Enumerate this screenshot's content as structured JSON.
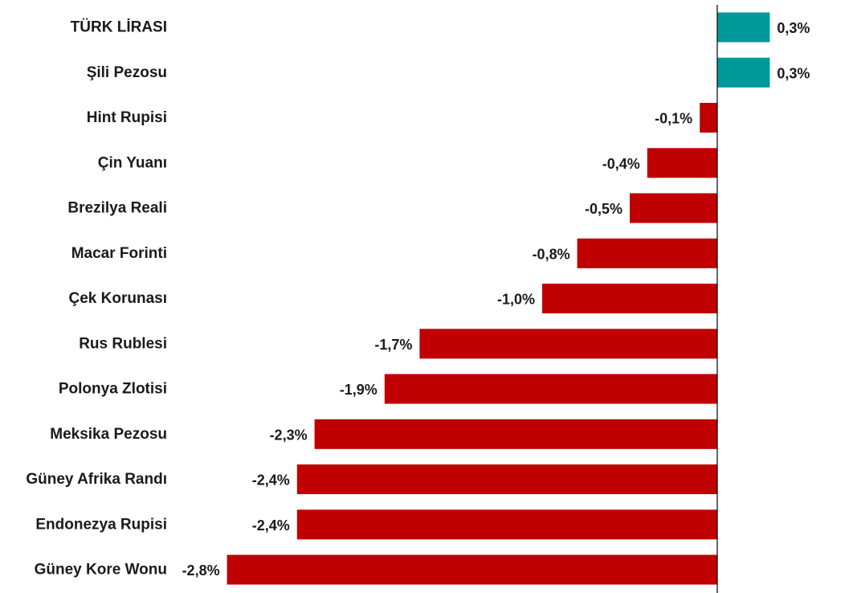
{
  "chart_data": {
    "type": "bar",
    "orientation": "horizontal",
    "categories": [
      "TÜRK LİRASI",
      "Şili Pezosu",
      "Hint Rupisi",
      "Çin Yuanı",
      "Brezilya Reali",
      "Macar Forinti",
      "Çek Korunası",
      "Rus Rublesi",
      "Polonya Zlotisi",
      "Meksika Pezosu",
      "Güney Afrika Randı",
      "Endonezya Rupisi",
      "Güney Kore Wonu"
    ],
    "values": [
      0.3,
      0.3,
      -0.1,
      -0.4,
      -0.5,
      -0.8,
      -1.0,
      -1.7,
      -1.9,
      -2.3,
      -2.4,
      -2.4,
      -2.8
    ],
    "data_labels": [
      "0,3%",
      "0,3%",
      "-0,1%",
      "-0,4%",
      "-0,5%",
      "-0,8%",
      "-1,0%",
      "-1,7%",
      "-1,9%",
      "-2,3%",
      "-2,4%",
      "-2,4%",
      "-2,8%"
    ],
    "title": "",
    "xlabel": "",
    "ylabel": "",
    "grid": false,
    "legend": "none",
    "colors": {
      "positive": "#009999",
      "negative": "#c00000",
      "axis": "#000000"
    }
  }
}
